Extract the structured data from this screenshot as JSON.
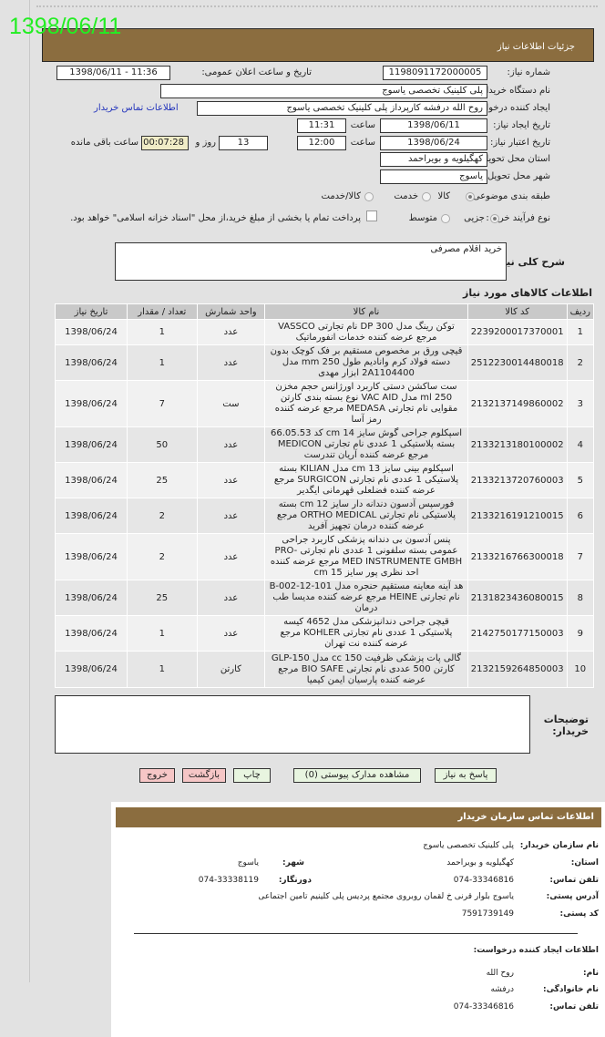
{
  "stamp_date": "1398/06/11",
  "header": {
    "title": "جزئیات اطلاعات نیاز"
  },
  "form": {
    "need_number_label": "شماره نیاز:",
    "need_number": "1198091172000005",
    "announce_label": "تاریخ و ساعت اعلان عمومی:",
    "announce_value": "1398/06/11 - 11:36",
    "buyer_org_label": "نام دستگاه خریدار:",
    "buyer_org": "پلی کلینیک تخصصی یاسوج",
    "creator_label": "ایجاد کننده درخواست:",
    "creator": "روح الله  درفشه  کارپرداز  پلی کلینیک تخصصی یاسوج",
    "buyer_contact_link": "اطلاعات تماس خریدار",
    "created_date_label": "تاریخ ایجاد نیاز:",
    "created_date": "1398/06/11",
    "time_label": "ساعت",
    "created_time": "11:31",
    "valid_date_label": "تاریخ اعتبار نیاز:",
    "valid_date": "1398/06/24",
    "valid_time": "12:00",
    "days": "13",
    "days_label": "روز و",
    "remaining": "00:07:28",
    "remaining_label": "ساعت باقی مانده",
    "province_label": "استان محل تحویل:",
    "province": "کهگیلویه و بویراحمد",
    "city_label": "شهر محل تحویل:",
    "city": "یاسوج",
    "category_label": "طبقه بندی موضوعی:",
    "category_options": [
      "کالا",
      "خدمت",
      "کالا/خدمت"
    ],
    "category_selected": "کالا",
    "process_label": "نوع فرآیند خرید :",
    "process_options": [
      "جزیی",
      "متوسط"
    ],
    "process_selected": "جزیی",
    "treasury_note": "پرداخت تمام یا بخشی از مبلغ خرید،از محل \"اسناد خزانه اسلامی\" خواهد بود.",
    "treasury_checked": false,
    "description_label": "شرح کلی نیاز:",
    "description": "خرید اقلام مصرفی",
    "items_title": "اطلاعات کالاهای مورد نیاز",
    "notes_label": "توضیحات خریدار:",
    "notes": ""
  },
  "table": {
    "headers": [
      "ردیف",
      "کد کالا",
      "نام کالا",
      "واحد شمارش",
      "تعداد / مقدار",
      "تاریخ نیاز"
    ],
    "rows": [
      [
        "1",
        "2239200017370001",
        "توکن رینگ مدل DP 300 نام تجارتی VASSCO مرجع عرضه کننده خدمات انفورماتیک",
        "عدد",
        "1",
        "1398/06/24"
      ],
      [
        "2",
        "2512230014480018",
        "قیچی ورق بر مخصوص مستقیم بر فک کوچک بدون دسته فولاد کرم وانادیم طول 250 mm مدل 2A1104400 ابزار مهدی",
        "عدد",
        "1",
        "1398/06/24"
      ],
      [
        "3",
        "2132137149860002",
        "ست ساکشن دستی کاربرد اورژانس حجم مخزن 250 ml مدل VAC AID نوع بسته بندی کارتن مقوایی نام تجارتی MEDASA مرجع عرضه کننده رمز آسا",
        "ست",
        "7",
        "1398/06/24"
      ],
      [
        "4",
        "2133213180100002",
        "اسپکلوم جراحی گوش سایز 14 cm کد 66.05.53 بسته پلاستیکی 1 عددی نام تجارتی MEDICON مرجع عرضه کننده آریان تندرست",
        "عدد",
        "50",
        "1398/06/24"
      ],
      [
        "5",
        "2133213720760003",
        "اسپکلوم بینی سایز 13 cm مدل KILIAN بسته پلاستیکی 1 عددی نام تجارتی SURGICON مرجع عرضه کننده فضلعلی قهرمانی ایگدیر",
        "عدد",
        "25",
        "1398/06/24"
      ],
      [
        "6",
        "2133216191210015",
        "فورسپس آدسون دندانه دار سایز 12 cm بسته پلاستیکی نام تجارتی ORTHO MEDICAL مرجع عرضه کننده درمان تجهیز آفرید",
        "عدد",
        "2",
        "1398/06/24"
      ],
      [
        "7",
        "2133216766300018",
        "پنس آدسون بی دندانه پزشکی کاربرد جراحی عمومی بسته سلفونی 1 عددی نام تجارتی PRO-MED INSTRUMENTE GMBH مرجع عرضه کننده احد نظری پور سایز 15 cm",
        "عدد",
        "2",
        "1398/06/24"
      ],
      [
        "8",
        "2131823436080015",
        "هد آینه معاینه مستقیم حنجره مدل B-002-12-101 نام تجارتی HEINE مرجع عرضه کننده مدیسا طب درمان",
        "عدد",
        "25",
        "1398/06/24"
      ],
      [
        "9",
        "2142750177150003",
        "قیچی جراحی دندانپزشکی مدل 4652 کیسه پلاستیکی 1 عددی نام تجارتی KOHLER مرجع عرضه کننده نت تهران",
        "عدد",
        "1",
        "1398/06/24"
      ],
      [
        "10",
        "2132159264850003",
        "گالی پات پزشکی ظرفیت 150 cc مدل GLP-150 کارتن 500 عددی نام تجارتی BIO SAFE مرجع عرضه کننده پارسیان ایمن کیمیا",
        "کارتن",
        "1",
        "1398/06/24"
      ]
    ]
  },
  "buttons": {
    "reply": "پاسخ به نیاز",
    "attachments": "مشاهده مدارک پیوستی (0)",
    "print": "چاپ",
    "back": "بازگشت",
    "exit": "خروج"
  },
  "contact": {
    "title": "اطلاعات تماس سازمان خریدار",
    "org_label": "نام سازمان خریدار:",
    "org": "پلی کلینیک تخصصی یاسوج",
    "province_label": "استان:",
    "province": "کهگیلویه و بویراحمد",
    "city_label": "شهر:",
    "city": "یاسوج",
    "phone_label": "تلفن تماس:",
    "phone": "074-33346816",
    "fax_label": "دورنگار:",
    "fax": "074-33338119",
    "address_label": "آدرس پستی:",
    "address": "یاسوج بلوار قرنی خ لقمان روبروی مجتمع پردیس پلی کلینیم تامین اجتماعی",
    "postal_label": "کد پستی:",
    "postal": "7591739149",
    "creator_title": "اطلاعات ایجاد کننده درخواست:",
    "name_label": "نام:",
    "name": "روح الله",
    "family_label": "نام خانوادگی:",
    "family": "درفشه",
    "cphone_label": "تلفن تماس:",
    "cphone": "074-33346816"
  }
}
